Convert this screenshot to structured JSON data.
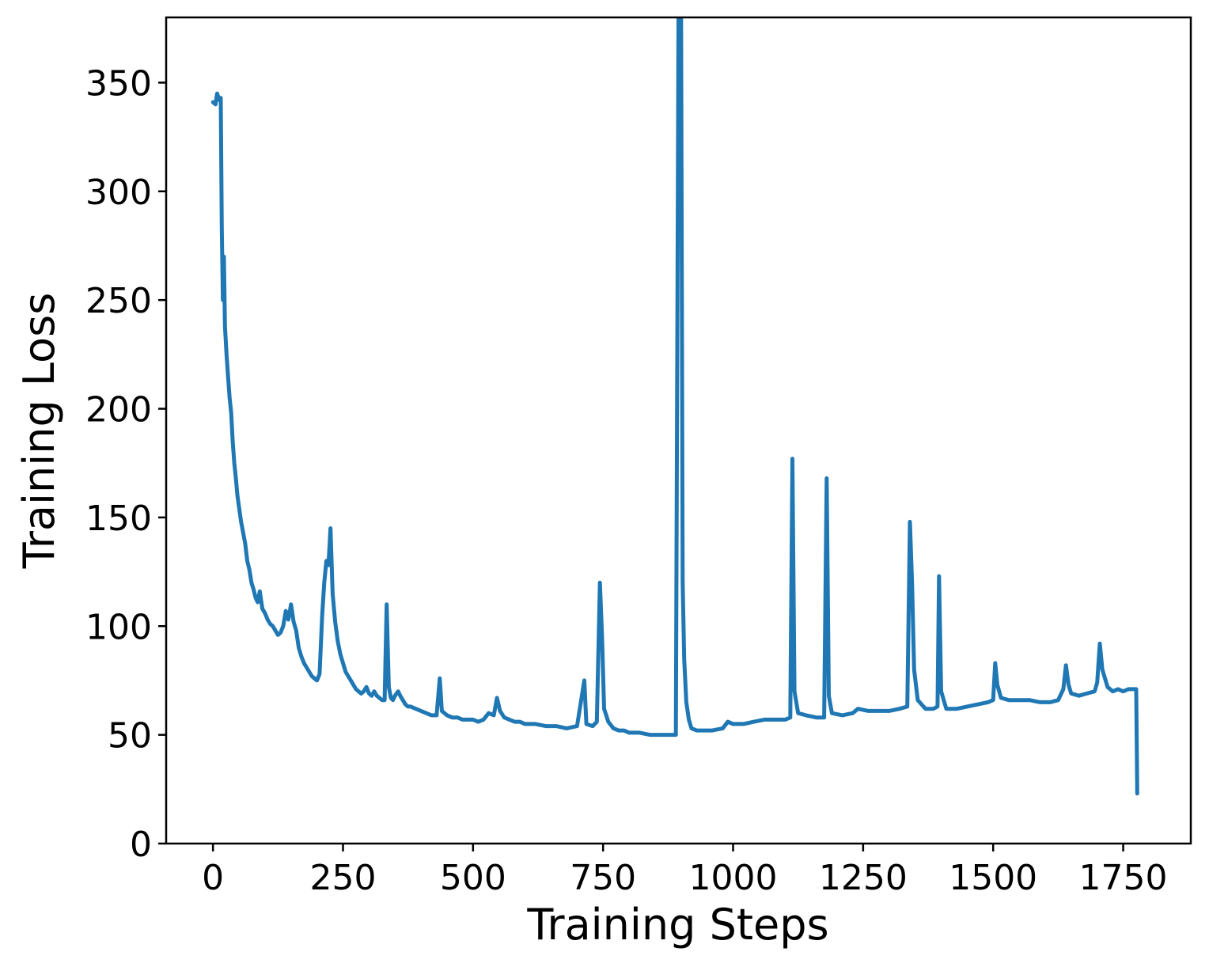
{
  "chart_data": {
    "type": "line",
    "title": "",
    "xlabel": "Training Steps",
    "ylabel": "Training Loss",
    "xlim": [
      -90,
      1880
    ],
    "ylim": [
      0,
      380
    ],
    "xticks": [
      0,
      250,
      500,
      750,
      1000,
      1250,
      1500,
      1750
    ],
    "yticks": [
      0,
      50,
      100,
      150,
      200,
      250,
      300,
      350
    ],
    "grid": false,
    "legend": "none",
    "series": [
      {
        "color": "#1f77b4",
        "points": [
          [
            0,
            341
          ],
          [
            5,
            340
          ],
          [
            8,
            345
          ],
          [
            12,
            342
          ],
          [
            15,
            343
          ],
          [
            17,
            283
          ],
          [
            19,
            250
          ],
          [
            21,
            270
          ],
          [
            23,
            238
          ],
          [
            26,
            225
          ],
          [
            29,
            215
          ],
          [
            32,
            205
          ],
          [
            35,
            198
          ],
          [
            38,
            185
          ],
          [
            41,
            175
          ],
          [
            44,
            168
          ],
          [
            47,
            160
          ],
          [
            50,
            155
          ],
          [
            54,
            148
          ],
          [
            58,
            143
          ],
          [
            62,
            138
          ],
          [
            66,
            130
          ],
          [
            70,
            126
          ],
          [
            74,
            120
          ],
          [
            78,
            117
          ],
          [
            82,
            113
          ],
          [
            86,
            111
          ],
          [
            90,
            116
          ],
          [
            95,
            108
          ],
          [
            100,
            106
          ],
          [
            105,
            103
          ],
          [
            110,
            101
          ],
          [
            115,
            100
          ],
          [
            120,
            98
          ],
          [
            125,
            96
          ],
          [
            130,
            97
          ],
          [
            135,
            100
          ],
          [
            140,
            107
          ],
          [
            145,
            103
          ],
          [
            150,
            110
          ],
          [
            155,
            102
          ],
          [
            160,
            98
          ],
          [
            165,
            90
          ],
          [
            170,
            86
          ],
          [
            175,
            83
          ],
          [
            180,
            81
          ],
          [
            185,
            79
          ],
          [
            190,
            77
          ],
          [
            195,
            76
          ],
          [
            200,
            75
          ],
          [
            205,
            78
          ],
          [
            210,
            105
          ],
          [
            214,
            120
          ],
          [
            218,
            130
          ],
          [
            222,
            128
          ],
          [
            226,
            145
          ],
          [
            230,
            115
          ],
          [
            235,
            102
          ],
          [
            240,
            93
          ],
          [
            245,
            87
          ],
          [
            250,
            83
          ],
          [
            255,
            79
          ],
          [
            260,
            77
          ],
          [
            265,
            75
          ],
          [
            270,
            73
          ],
          [
            275,
            71
          ],
          [
            280,
            70
          ],
          [
            285,
            69
          ],
          [
            290,
            70
          ],
          [
            295,
            72
          ],
          [
            300,
            69
          ],
          [
            305,
            68
          ],
          [
            310,
            70
          ],
          [
            315,
            68
          ],
          [
            320,
            67
          ],
          [
            325,
            66
          ],
          [
            330,
            66
          ],
          [
            334,
            110
          ],
          [
            338,
            72
          ],
          [
            342,
            67
          ],
          [
            346,
            66
          ],
          [
            350,
            68
          ],
          [
            356,
            70
          ],
          [
            360,
            68
          ],
          [
            365,
            66
          ],
          [
            370,
            64
          ],
          [
            375,
            63
          ],
          [
            380,
            63
          ],
          [
            390,
            62
          ],
          [
            400,
            61
          ],
          [
            410,
            60
          ],
          [
            420,
            59
          ],
          [
            430,
            59
          ],
          [
            436,
            76
          ],
          [
            440,
            61
          ],
          [
            450,
            59
          ],
          [
            460,
            58
          ],
          [
            470,
            58
          ],
          [
            480,
            57
          ],
          [
            490,
            57
          ],
          [
            500,
            57
          ],
          [
            510,
            56
          ],
          [
            520,
            57
          ],
          [
            530,
            60
          ],
          [
            540,
            59
          ],
          [
            546,
            67
          ],
          [
            552,
            61
          ],
          [
            560,
            58
          ],
          [
            570,
            57
          ],
          [
            580,
            56
          ],
          [
            590,
            56
          ],
          [
            600,
            55
          ],
          [
            620,
            55
          ],
          [
            640,
            54
          ],
          [
            660,
            54
          ],
          [
            680,
            53
          ],
          [
            700,
            54
          ],
          [
            714,
            75
          ],
          [
            718,
            55
          ],
          [
            730,
            54
          ],
          [
            738,
            56
          ],
          [
            744,
            120
          ],
          [
            748,
            95
          ],
          [
            752,
            62
          ],
          [
            760,
            56
          ],
          [
            770,
            53
          ],
          [
            780,
            52
          ],
          [
            790,
            52
          ],
          [
            800,
            51
          ],
          [
            820,
            51
          ],
          [
            840,
            50
          ],
          [
            860,
            50
          ],
          [
            880,
            50
          ],
          [
            890,
            50
          ],
          [
            895,
            380
          ],
          [
            900,
            380
          ],
          [
            903,
            120
          ],
          [
            906,
            85
          ],
          [
            910,
            65
          ],
          [
            915,
            57
          ],
          [
            920,
            53
          ],
          [
            930,
            52
          ],
          [
            940,
            52
          ],
          [
            950,
            52
          ],
          [
            960,
            52
          ],
          [
            980,
            53
          ],
          [
            990,
            56
          ],
          [
            1000,
            55
          ],
          [
            1020,
            55
          ],
          [
            1040,
            56
          ],
          [
            1060,
            57
          ],
          [
            1080,
            57
          ],
          [
            1100,
            57
          ],
          [
            1110,
            58
          ],
          [
            1114,
            177
          ],
          [
            1118,
            70
          ],
          [
            1125,
            60
          ],
          [
            1140,
            59
          ],
          [
            1160,
            58
          ],
          [
            1175,
            58
          ],
          [
            1180,
            168
          ],
          [
            1184,
            68
          ],
          [
            1190,
            60
          ],
          [
            1210,
            59
          ],
          [
            1230,
            60
          ],
          [
            1240,
            62
          ],
          [
            1260,
            61
          ],
          [
            1280,
            61
          ],
          [
            1300,
            61
          ],
          [
            1320,
            62
          ],
          [
            1335,
            63
          ],
          [
            1340,
            148
          ],
          [
            1344,
            120
          ],
          [
            1348,
            80
          ],
          [
            1355,
            66
          ],
          [
            1370,
            62
          ],
          [
            1385,
            62
          ],
          [
            1393,
            63
          ],
          [
            1396,
            123
          ],
          [
            1400,
            70
          ],
          [
            1410,
            62
          ],
          [
            1430,
            62
          ],
          [
            1450,
            63
          ],
          [
            1470,
            64
          ],
          [
            1490,
            65
          ],
          [
            1500,
            66
          ],
          [
            1504,
            83
          ],
          [
            1508,
            73
          ],
          [
            1515,
            67
          ],
          [
            1530,
            66
          ],
          [
            1550,
            66
          ],
          [
            1570,
            66
          ],
          [
            1590,
            65
          ],
          [
            1610,
            65
          ],
          [
            1625,
            66
          ],
          [
            1635,
            71
          ],
          [
            1640,
            82
          ],
          [
            1645,
            73
          ],
          [
            1650,
            69
          ],
          [
            1665,
            68
          ],
          [
            1680,
            69
          ],
          [
            1695,
            70
          ],
          [
            1700,
            74
          ],
          [
            1705,
            92
          ],
          [
            1710,
            80
          ],
          [
            1720,
            72
          ],
          [
            1730,
            70
          ],
          [
            1740,
            71
          ],
          [
            1750,
            70
          ],
          [
            1760,
            71
          ],
          [
            1770,
            71
          ],
          [
            1775,
            71
          ],
          [
            1777,
            23
          ]
        ]
      }
    ]
  }
}
